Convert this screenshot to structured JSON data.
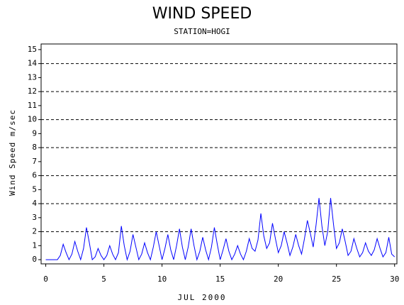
{
  "chart_data": {
    "type": "line",
    "title": "WIND SPEED",
    "subtitle": "STATION=HOGI",
    "x_label": "JUL 2000",
    "y_label": "Wind Speed m/sec",
    "x": [
      0,
      0.25,
      0.5,
      0.75,
      1,
      1.25,
      1.5,
      1.75,
      2,
      2.25,
      2.5,
      2.75,
      3,
      3.25,
      3.5,
      3.75,
      4,
      4.25,
      4.5,
      4.75,
      5,
      5.25,
      5.5,
      5.75,
      6,
      6.25,
      6.5,
      6.75,
      7,
      7.25,
      7.5,
      7.75,
      8,
      8.25,
      8.5,
      8.75,
      9,
      9.25,
      9.5,
      9.75,
      10,
      10.25,
      10.5,
      10.75,
      11,
      11.25,
      11.5,
      11.75,
      12,
      12.25,
      12.5,
      12.75,
      13,
      13.25,
      13.5,
      13.75,
      14,
      14.25,
      14.5,
      14.75,
      15,
      15.25,
      15.5,
      15.75,
      16,
      16.25,
      16.5,
      16.75,
      17,
      17.25,
      17.5,
      17.75,
      18,
      18.25,
      18.5,
      18.75,
      19,
      19.25,
      19.5,
      19.75,
      20,
      20.25,
      20.5,
      20.75,
      21,
      21.25,
      21.5,
      21.75,
      22,
      22.25,
      22.5,
      22.75,
      23,
      23.25,
      23.5,
      23.75,
      24,
      24.25,
      24.5,
      24.75,
      25,
      25.25,
      25.5,
      25.75,
      26,
      26.25,
      26.5,
      26.75,
      27,
      27.25,
      27.5,
      27.75,
      28,
      28.25,
      28.5,
      28.75,
      29,
      29.25,
      29.5,
      29.75,
      30
    ],
    "series": [
      {
        "name": "Wind Speed",
        "color": "#0000ff",
        "values": [
          0,
          0,
          0,
          0,
          0,
          0.3,
          1.1,
          0.5,
          0,
          0.4,
          1.3,
          0.6,
          0,
          0.8,
          2.3,
          1.2,
          0,
          0.2,
          0.8,
          0.3,
          0,
          0.3,
          1.0,
          0.4,
          0,
          0.5,
          2.4,
          1.0,
          0,
          0.6,
          1.8,
          0.9,
          0,
          0.4,
          1.2,
          0.5,
          0,
          0.9,
          2.0,
          1.0,
          0,
          0.8,
          1.8,
          0.7,
          0,
          1.0,
          2.2,
          0.9,
          0,
          0.9,
          2.2,
          1.0,
          0,
          0.6,
          1.6,
          0.7,
          0,
          0.9,
          2.3,
          1.1,
          0,
          0.7,
          1.5,
          0.6,
          0,
          0.4,
          1.0,
          0.4,
          0,
          0.6,
          1.5,
          0.8,
          0.6,
          1.4,
          3.3,
          1.7,
          0.8,
          1.2,
          2.6,
          1.5,
          0.5,
          1.0,
          2.0,
          1.2,
          0.3,
          0.9,
          1.8,
          1.0,
          0.4,
          1.5,
          2.8,
          1.9,
          0.9,
          2.5,
          4.4,
          2.4,
          1.0,
          2.0,
          4.4,
          2.5,
          0.8,
          1.2,
          2.2,
          1.3,
          0.3,
          0.6,
          1.5,
          0.8,
          0.2,
          0.5,
          1.2,
          0.6,
          0.3,
          0.7,
          1.5,
          0.8,
          0.2,
          0.5,
          1.6,
          0.4,
          0.2
        ]
      }
    ],
    "xlim": [
      -0.4,
      30.2
    ],
    "xticks": [
      0,
      5,
      10,
      15,
      20,
      25,
      30
    ],
    "ylim": [
      -0.3,
      15.4
    ],
    "yticks": [
      0,
      1,
      2,
      3,
      4,
      5,
      6,
      7,
      8,
      9,
      10,
      11,
      12,
      13,
      14,
      15
    ],
    "ygrid": [
      2,
      4,
      6,
      8,
      10,
      12,
      14
    ]
  }
}
